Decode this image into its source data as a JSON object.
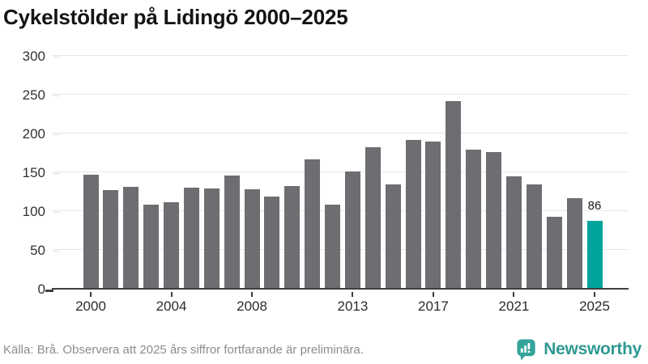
{
  "title": "Cykelstölder på Lidingö 2000–2025",
  "footer": {
    "source": "Källa: Brå. Observera att 2025 års siffror fortfarande är preliminära."
  },
  "logo": {
    "text": "Newsworthy",
    "icon": "newsworthy-barchart-pin-icon",
    "color": "#2f9a92"
  },
  "colors": {
    "bar": "#6d6d72",
    "highlight": "#00a49c",
    "gridline": "#e6e6e6",
    "axis": "#3d3d42",
    "y_tick_light": "#dcdcdc"
  },
  "chart_data": {
    "type": "bar",
    "title": "Cykelstölder på Lidingö 2000–2025",
    "xlabel": "",
    "ylabel": "",
    "categories": [
      2000,
      2001,
      2002,
      2003,
      2004,
      2005,
      2006,
      2007,
      2008,
      2009,
      2010,
      2011,
      2012,
      2013,
      2014,
      2015,
      2016,
      2017,
      2018,
      2019,
      2020,
      2021,
      2022,
      2023,
      2024,
      2025
    ],
    "values": [
      146,
      126,
      130,
      107,
      110,
      129,
      128,
      145,
      127,
      118,
      131,
      166,
      107,
      150,
      181,
      133,
      191,
      189,
      241,
      178,
      175,
      144,
      133,
      92,
      116,
      86
    ],
    "highlight_year": 2025,
    "value_label": {
      "year": 2025,
      "text": "86"
    },
    "y_ticks": [
      0,
      50,
      100,
      150,
      200,
      250,
      300
    ],
    "ylim": [
      0,
      300
    ],
    "x_tick_years": [
      2000,
      2004,
      2008,
      2013,
      2017,
      2021,
      2025
    ],
    "grid": true,
    "legend": "none"
  }
}
